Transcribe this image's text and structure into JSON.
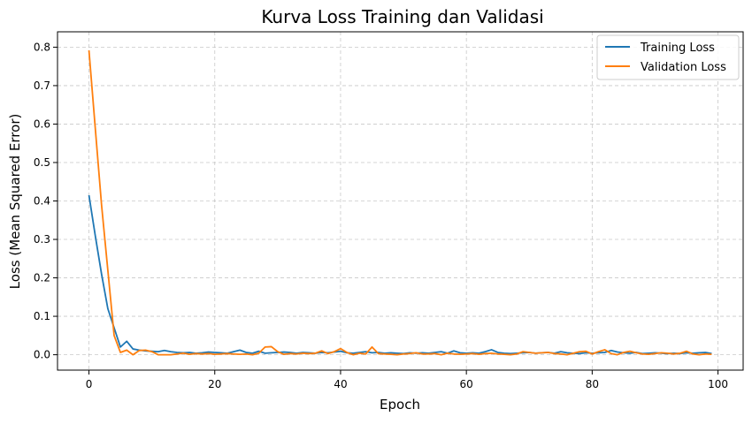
{
  "chart_data": {
    "type": "line",
    "title": "Kurva Loss Training dan Validasi",
    "xlabel": "Epoch",
    "ylabel": "Loss (Mean Squared Error)",
    "xlim": [
      -5,
      104
    ],
    "ylim": [
      -0.04,
      0.84
    ],
    "xticks": [
      0,
      20,
      40,
      60,
      80,
      100
    ],
    "yticks": [
      0.0,
      0.1,
      0.2,
      0.3,
      0.4,
      0.5,
      0.6,
      0.7,
      0.8
    ],
    "grid": true,
    "legend_position": "top-right",
    "x": [
      0,
      1,
      2,
      3,
      4,
      5,
      6,
      7,
      8,
      9,
      10,
      11,
      12,
      13,
      14,
      15,
      16,
      17,
      18,
      19,
      20,
      21,
      22,
      23,
      24,
      25,
      26,
      27,
      28,
      29,
      30,
      31,
      32,
      33,
      34,
      35,
      36,
      37,
      38,
      39,
      40,
      41,
      42,
      43,
      44,
      45,
      46,
      47,
      48,
      49,
      50,
      51,
      52,
      53,
      54,
      55,
      56,
      57,
      58,
      59,
      60,
      61,
      62,
      63,
      64,
      65,
      66,
      67,
      68,
      69,
      70,
      71,
      72,
      73,
      74,
      75,
      76,
      77,
      78,
      79,
      80,
      81,
      82,
      83,
      84,
      85,
      86,
      87,
      88,
      89,
      90,
      91,
      92,
      93,
      94,
      95,
      96,
      97,
      98,
      99
    ],
    "series": [
      {
        "name": "Training Loss",
        "color": "#1f77b4",
        "values": [
          0.415,
          0.31,
          0.21,
          0.12,
          0.07,
          0.02,
          0.035,
          0.015,
          0.012,
          0.01,
          0.009,
          0.008,
          0.011,
          0.008,
          0.006,
          0.005,
          0.006,
          0.004,
          0.005,
          0.007,
          0.006,
          0.005,
          0.004,
          0.008,
          0.012,
          0.006,
          0.004,
          0.009,
          0.004,
          0.005,
          0.006,
          0.007,
          0.006,
          0.004,
          0.006,
          0.005,
          0.004,
          0.006,
          0.005,
          0.007,
          0.009,
          0.005,
          0.004,
          0.006,
          0.008,
          0.005,
          0.006,
          0.004,
          0.005,
          0.004,
          0.003,
          0.005,
          0.004,
          0.005,
          0.004,
          0.006,
          0.008,
          0.004,
          0.01,
          0.005,
          0.004,
          0.005,
          0.004,
          0.008,
          0.013,
          0.006,
          0.004,
          0.003,
          0.004,
          0.005,
          0.006,
          0.004,
          0.005,
          0.006,
          0.004,
          0.008,
          0.005,
          0.004,
          0.003,
          0.005,
          0.004,
          0.005,
          0.006,
          0.011,
          0.007,
          0.005,
          0.004,
          0.006,
          0.003,
          0.004,
          0.005,
          0.004,
          0.003,
          0.004,
          0.003,
          0.005,
          0.004,
          0.005,
          0.006,
          0.003
        ]
      },
      {
        "name": "Validation Loss",
        "color": "#ff7f0e",
        "values": [
          0.792,
          0.59,
          0.39,
          0.22,
          0.05,
          0.006,
          0.012,
          0.0,
          0.011,
          0.012,
          0.008,
          0.0,
          0.0,
          0.0,
          0.002,
          0.004,
          0.001,
          0.003,
          0.002,
          0.003,
          0.001,
          0.002,
          0.003,
          0.002,
          0.001,
          0.002,
          0.0,
          0.004,
          0.02,
          0.021,
          0.008,
          0.001,
          0.003,
          0.002,
          0.004,
          0.003,
          0.004,
          0.01,
          0.003,
          0.008,
          0.016,
          0.006,
          0.0,
          0.004,
          0.002,
          0.02,
          0.003,
          0.002,
          0.001,
          0.0,
          0.002,
          0.003,
          0.005,
          0.002,
          0.002,
          0.003,
          0.0,
          0.004,
          0.002,
          0.001,
          0.002,
          0.003,
          0.001,
          0.003,
          0.004,
          0.002,
          0.001,
          0.0,
          0.002,
          0.008,
          0.006,
          0.004,
          0.005,
          0.006,
          0.003,
          0.002,
          0.0,
          0.004,
          0.008,
          0.009,
          0.002,
          0.008,
          0.013,
          0.003,
          0.0,
          0.006,
          0.009,
          0.005,
          0.002,
          0.001,
          0.003,
          0.005,
          0.004,
          0.002,
          0.004,
          0.009,
          0.002,
          0.0,
          0.002,
          0.001
        ]
      }
    ]
  }
}
